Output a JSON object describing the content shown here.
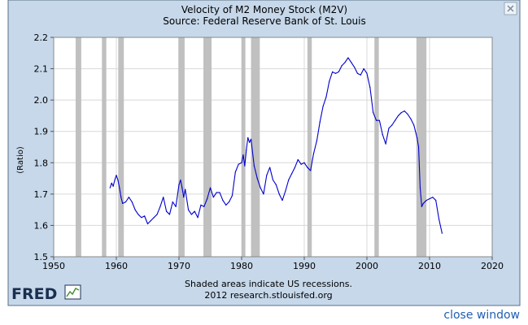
{
  "window": {
    "close_icon": "close-icon",
    "close_window_label": "close window",
    "logo_text": "FRED",
    "logo_icon": "fred-chart-icon"
  },
  "chart_data": {
    "type": "line",
    "title": "Velocity of M2 Money Stock (M2V)",
    "subtitle": "Source: Federal Reserve Bank of St. Louis",
    "xlabel": "",
    "ylabel": "(Ratio)",
    "xlim": [
      1950,
      2020
    ],
    "ylim": [
      1.5,
      2.2
    ],
    "xticks": [
      "1950",
      "1960",
      "1970",
      "1980",
      "1990",
      "2000",
      "2010",
      "2020"
    ],
    "yticks": [
      "1.5",
      "1.6",
      "1.7",
      "1.8",
      "1.9",
      "2.0",
      "2.1",
      "2.2"
    ],
    "grid": true,
    "footnotes": [
      "Shaded areas indicate US recessions.",
      "2012 research.stlouisfed.org"
    ],
    "recessions": [
      [
        1953.5,
        1954.4
      ],
      [
        1957.7,
        1958.4
      ],
      [
        1960.3,
        1961.2
      ],
      [
        1969.9,
        1970.9
      ],
      [
        1973.9,
        1975.2
      ],
      [
        1980.0,
        1980.6
      ],
      [
        1981.5,
        1982.9
      ],
      [
        1990.5,
        1991.2
      ],
      [
        2001.2,
        2001.9
      ],
      [
        2007.9,
        2009.5
      ]
    ],
    "colors": {
      "line": "#0000cc",
      "recession": "#c0c0c0",
      "background": "#c6d8ea",
      "plot_bg": "#ffffff",
      "grid": "#d8d8d8"
    },
    "series": [
      {
        "x": [
          1959.0,
          1959.25,
          1959.5,
          1959.75,
          1960.0,
          1960.25,
          1960.5,
          1960.75,
          1961.0,
          1961.5,
          1962.0,
          1962.5,
          1963.0,
          1963.5,
          1964.0,
          1964.5,
          1965.0,
          1965.5,
          1966.0,
          1966.5,
          1967.0,
          1967.5,
          1968.0,
          1968.5,
          1969.0,
          1969.5,
          1970.0,
          1970.25,
          1970.5,
          1970.75,
          1971.0,
          1971.5,
          1972.0,
          1972.5,
          1973.0,
          1973.5,
          1974.0,
          1974.5,
          1975.0,
          1975.5,
          1976.0,
          1976.5,
          1977.0,
          1977.5,
          1978.0,
          1978.5,
          1979.0,
          1979.5,
          1980.0,
          1980.25,
          1980.5,
          1980.75,
          1981.0,
          1981.25,
          1981.5,
          1982.0,
          1982.5,
          1983.0,
          1983.5,
          1984.0,
          1984.5,
          1985.0,
          1985.5,
          1986.0,
          1986.5,
          1987.0,
          1987.5,
          1988.0,
          1988.5,
          1989.0,
          1989.5,
          1990.0,
          1990.5,
          1991.0,
          1991.5,
          1992.0,
          1992.5,
          1993.0,
          1993.5,
          1994.0,
          1994.5,
          1995.0,
          1995.5,
          1996.0,
          1996.5,
          1997.0,
          1997.5,
          1998.0,
          1998.5,
          1999.0,
          1999.5,
          2000.0,
          2000.5,
          2001.0,
          2001.5,
          2002.0,
          2002.5,
          2003.0,
          2003.5,
          2004.0,
          2004.5,
          2005.0,
          2005.5,
          2006.0,
          2006.5,
          2007.0,
          2007.5,
          2008.0,
          2008.25,
          2008.5,
          2008.75,
          2009.0,
          2009.5,
          2010.0,
          2010.5,
          2011.0,
          2011.5,
          2012.0
        ],
        "values": [
          1.72,
          1.735,
          1.725,
          1.745,
          1.76,
          1.745,
          1.72,
          1.69,
          1.67,
          1.675,
          1.69,
          1.675,
          1.65,
          1.635,
          1.625,
          1.63,
          1.605,
          1.615,
          1.625,
          1.635,
          1.66,
          1.69,
          1.645,
          1.635,
          1.675,
          1.66,
          1.73,
          1.745,
          1.72,
          1.69,
          1.715,
          1.65,
          1.635,
          1.645,
          1.625,
          1.665,
          1.66,
          1.685,
          1.72,
          1.69,
          1.705,
          1.705,
          1.68,
          1.665,
          1.675,
          1.695,
          1.77,
          1.795,
          1.8,
          1.825,
          1.79,
          1.84,
          1.88,
          1.865,
          1.875,
          1.79,
          1.75,
          1.72,
          1.7,
          1.76,
          1.785,
          1.745,
          1.73,
          1.7,
          1.68,
          1.71,
          1.745,
          1.765,
          1.785,
          1.81,
          1.795,
          1.8,
          1.785,
          1.775,
          1.83,
          1.87,
          1.93,
          1.98,
          2.01,
          2.06,
          2.09,
          2.085,
          2.09,
          2.11,
          2.12,
          2.135,
          2.12,
          2.105,
          2.085,
          2.08,
          2.1,
          2.085,
          2.04,
          1.96,
          1.935,
          1.935,
          1.89,
          1.86,
          1.91,
          1.92,
          1.935,
          1.95,
          1.96,
          1.965,
          1.955,
          1.94,
          1.92,
          1.88,
          1.85,
          1.72,
          1.66,
          1.67,
          1.68,
          1.685,
          1.69,
          1.68,
          1.62,
          1.575
        ]
      }
    ]
  }
}
